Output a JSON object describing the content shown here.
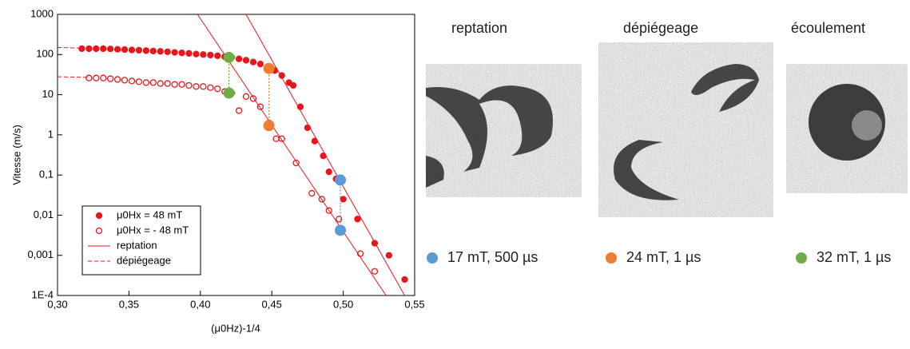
{
  "chart_data": {
    "type": "scatter",
    "x_label": "(μ0Hz)-1/4",
    "y_label": "Vitesse (m/s)",
    "log_y": true,
    "xlim": [
      0.3,
      0.55
    ],
    "xticks": [
      {
        "value": 0.3,
        "label": "0,30"
      },
      {
        "value": 0.35,
        "label": "0,35"
      },
      {
        "value": 0.4,
        "label": "0,40"
      },
      {
        "value": 0.45,
        "label": "0,45"
      },
      {
        "value": 0.5,
        "label": "0,50"
      },
      {
        "value": 0.55,
        "label": "0,55"
      }
    ],
    "ylim": [
      0.0001,
      1000
    ],
    "yticks": [
      {
        "value": 0.0001,
        "label": "1E-4"
      },
      {
        "value": 0.001,
        "label": "0,001"
      },
      {
        "value": 0.01,
        "label": "0,01"
      },
      {
        "value": 0.1,
        "label": "0,1"
      },
      1,
      10,
      100,
      1000
    ],
    "legend": "bottom-left",
    "series": [
      {
        "name": "μ0Hx = 48 mT",
        "color": "#e8161b",
        "marker": "filled",
        "x": [
          0.317,
          0.322,
          0.327,
          0.332,
          0.337,
          0.342,
          0.347,
          0.352,
          0.357,
          0.362,
          0.367,
          0.372,
          0.377,
          0.382,
          0.387,
          0.392,
          0.397,
          0.402,
          0.407,
          0.412,
          0.417,
          0.422,
          0.427,
          0.432,
          0.437,
          0.442,
          0.447,
          0.452,
          0.457,
          0.462,
          0.465,
          0.47,
          0.475,
          0.48,
          0.486,
          0.49,
          0.495,
          0.5,
          0.51,
          0.522,
          0.532,
          0.543
        ],
        "values": [
          140,
          140,
          140,
          140,
          138,
          135,
          133,
          130,
          128,
          125,
          122,
          120,
          117,
          113,
          110,
          107,
          103,
          100,
          97,
          93,
          88,
          85,
          78,
          72,
          65,
          58,
          50,
          40,
          30,
          20,
          17,
          5,
          1.5,
          0.7,
          0.3,
          0.12,
          0.08,
          0.025,
          0.008,
          0.002,
          0.001,
          0.00025
        ]
      },
      {
        "name": "μ0Hx = - 48 mT",
        "color": "#e8161b",
        "marker": "open",
        "x": [
          0.322,
          0.327,
          0.332,
          0.337,
          0.342,
          0.347,
          0.352,
          0.357,
          0.362,
          0.367,
          0.372,
          0.377,
          0.382,
          0.387,
          0.392,
          0.397,
          0.402,
          0.407,
          0.412,
          0.417,
          0.422,
          0.427,
          0.432,
          0.437,
          0.442,
          0.448,
          0.453,
          0.457,
          0.467,
          0.478,
          0.485,
          0.49,
          0.497,
          0.512,
          0.522
        ],
        "values": [
          26,
          26,
          26,
          25,
          24,
          23,
          22,
          21,
          20,
          20,
          19,
          19,
          18,
          18,
          17,
          16,
          16,
          15,
          14,
          12,
          11,
          4,
          9,
          8,
          5,
          2,
          0.8,
          0.8,
          0.2,
          0.035,
          0.025,
          0.013,
          0.008,
          0.0011,
          0.0004
        ]
      },
      {
        "name": "reptation",
        "color": "#e8161b",
        "marker": "line",
        "dash": false,
        "lines": [
          {
            "x": [
              0.398,
              0.53
            ],
            "values": [
              1000,
              0.0001
            ]
          },
          {
            "x": [
              0.432,
              0.543
            ],
            "values": [
              1000,
              0.0001
            ]
          }
        ]
      },
      {
        "name": "dépiégeage",
        "color": "#e8161b",
        "marker": "line",
        "dash": true,
        "lines": [
          {
            "x": [
              0.3,
              0.317
            ],
            "values": [
              150,
              145
            ]
          },
          {
            "x": [
              0.3,
              0.322
            ],
            "values": [
              28,
              27
            ]
          }
        ]
      }
    ],
    "markers": [
      {
        "color": "#70ad47",
        "x": 0.42,
        "values": [
          85,
          11
        ]
      },
      {
        "color": "#ed7d31",
        "x": 0.448,
        "values": [
          45,
          1.7
        ]
      },
      {
        "color": "#5b9bd5",
        "x": 0.498,
        "values": [
          0.075,
          0.0042
        ]
      }
    ]
  },
  "images": [
    {
      "title": "reptation",
      "caption": "17 mT, 500 µs",
      "color": "#5b9bd5"
    },
    {
      "title": "dépiégeage",
      "caption": "24 mT, 1 µs",
      "color": "#ed7d31"
    },
    {
      "title": "écoulement",
      "caption": "32 mT, 1 µs",
      "color": "#70ad47"
    }
  ]
}
